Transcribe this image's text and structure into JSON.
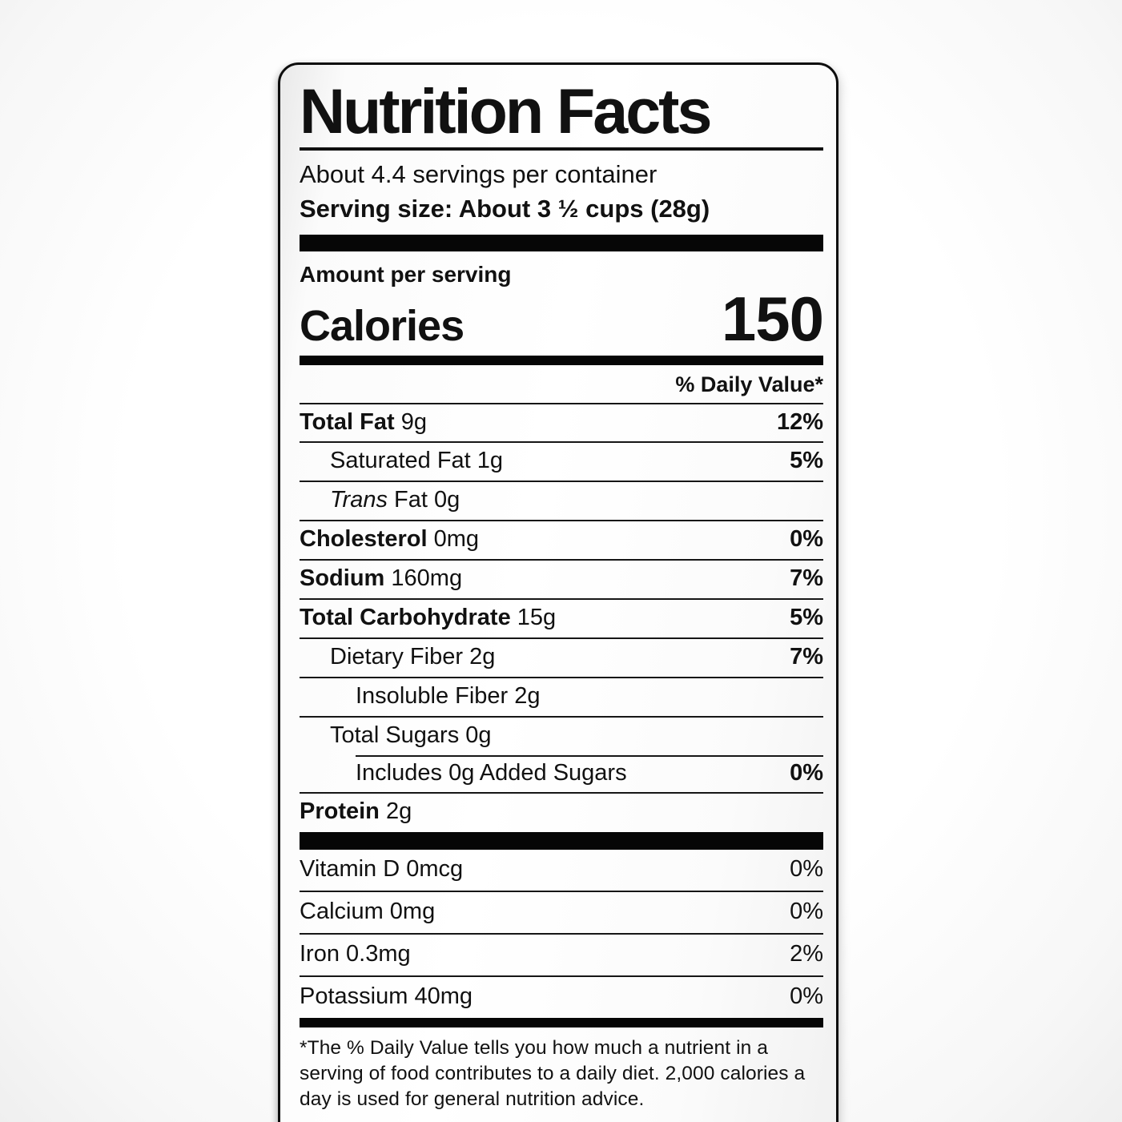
{
  "label": {
    "title": "Nutrition Facts",
    "servings_per_container": "About 4.4 servings per container",
    "serving_size": "Serving size: About 3 ½ cups (28g)",
    "amount_per_serving": "Amount per serving",
    "calories_label": "Calories",
    "calories_value": "150",
    "daily_value_header": "% Daily Value*",
    "nutrients": [
      {
        "name": "Total Fat",
        "amount": "9g",
        "dv": "12%"
      },
      {
        "name": "Saturated Fat",
        "amount": "1g",
        "dv": "5%"
      },
      {
        "name_italic": "Trans",
        "name": "Fat",
        "amount": "0g",
        "dv": ""
      },
      {
        "name": "Cholesterol",
        "amount": "0mg",
        "dv": "0%"
      },
      {
        "name": "Sodium",
        "amount": "160mg",
        "dv": "7%"
      },
      {
        "name": "Total Carbohydrate",
        "amount": "15g",
        "dv": "5%"
      },
      {
        "name": "Dietary Fiber",
        "amount": "2g",
        "dv": "7%"
      },
      {
        "name": "Insoluble Fiber",
        "amount": "2g",
        "dv": ""
      },
      {
        "name": "Total Sugars",
        "amount": "0g",
        "dv": ""
      },
      {
        "name": "Includes 0g Added Sugars",
        "amount": "",
        "dv": "0%"
      },
      {
        "name": "Protein",
        "amount": "2g",
        "dv": ""
      }
    ],
    "micronutrients": [
      {
        "name": "Vitamin D 0mcg",
        "dv": "0%"
      },
      {
        "name": "Calcium 0mg",
        "dv": "0%"
      },
      {
        "name": "Iron 0.3mg",
        "dv": "2%"
      },
      {
        "name": "Potassium 40mg",
        "dv": "0%"
      }
    ],
    "footnote": "*The % Daily Value tells you how much a nutrient in a serving of food contributes to a daily diet. 2,000 calories a day is used for general nutrition advice.",
    "colors": {
      "text": "#111111",
      "bars": "#060606",
      "label_border": "#0d0d0d"
    }
  }
}
